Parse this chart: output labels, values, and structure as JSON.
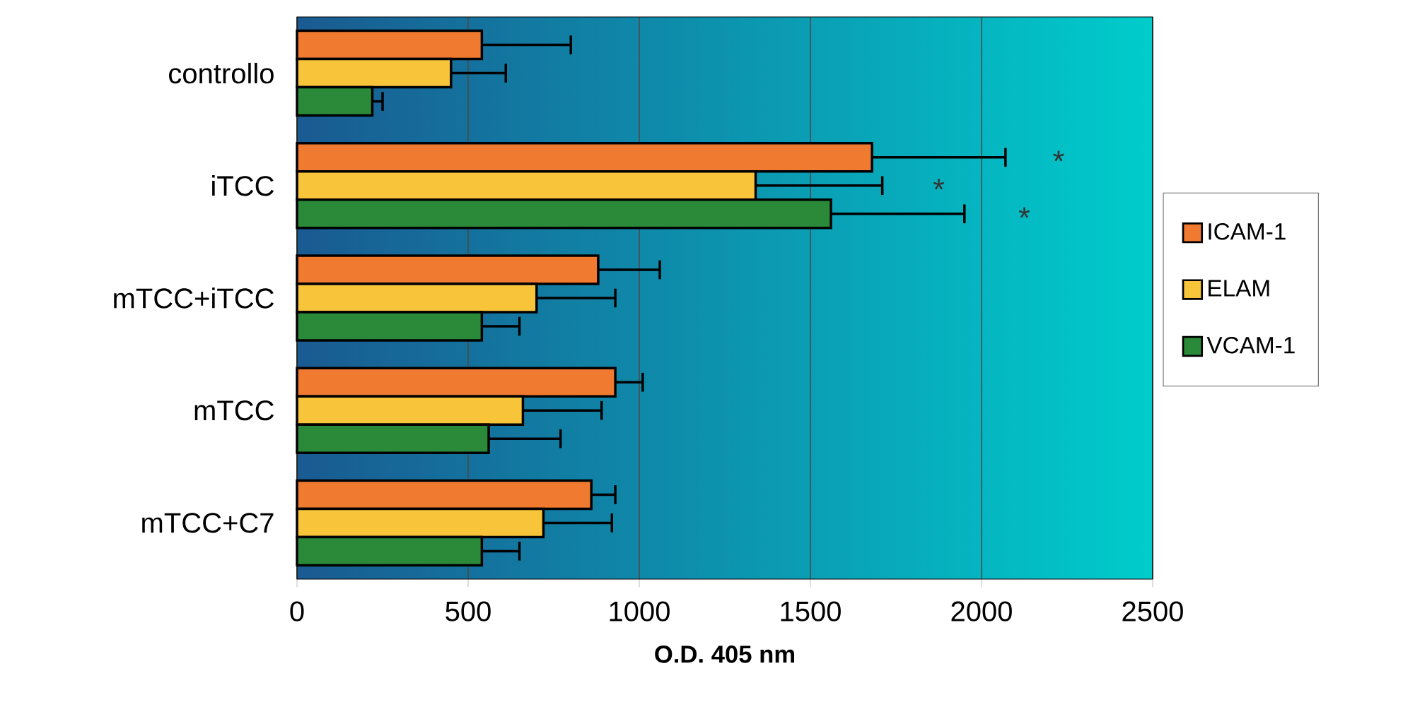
{
  "chart_data": {
    "type": "bar",
    "orientation": "horizontal",
    "xlabel": "O.D. 405 nm",
    "categories": [
      "controllo",
      "iTCC",
      "mTCC+iTCC",
      "mTCC",
      "mTCC+C7"
    ],
    "series": [
      {
        "name": "ICAM-1",
        "color": "#f07a30",
        "values": [
          540,
          1680,
          880,
          930,
          860
        ],
        "errors": [
          [
            540,
            800
          ],
          [
            1680,
            2070
          ],
          [
            880,
            1060
          ],
          [
            930,
            1010
          ],
          [
            860,
            930
          ]
        ]
      },
      {
        "name": "ELAM",
        "color": "#f8c53a",
        "values": [
          450,
          1340,
          700,
          660,
          720
        ],
        "errors": [
          [
            450,
            610
          ],
          [
            1340,
            1710
          ],
          [
            700,
            930
          ],
          [
            660,
            890
          ],
          [
            720,
            920
          ]
        ]
      },
      {
        "name": "VCAM-1",
        "color": "#2a8a3a",
        "values": [
          220,
          1560,
          540,
          560,
          540
        ],
        "errors": [
          [
            220,
            250
          ],
          [
            1560,
            1950
          ],
          [
            540,
            650
          ],
          [
            560,
            770
          ],
          [
            540,
            650
          ]
        ]
      }
    ],
    "xlim": [
      0,
      2500
    ],
    "xticks": [
      0,
      500,
      1000,
      1500,
      2000,
      2500
    ],
    "grid": "x",
    "legend": "right",
    "annotations": [
      "*",
      "*",
      "*"
    ]
  }
}
